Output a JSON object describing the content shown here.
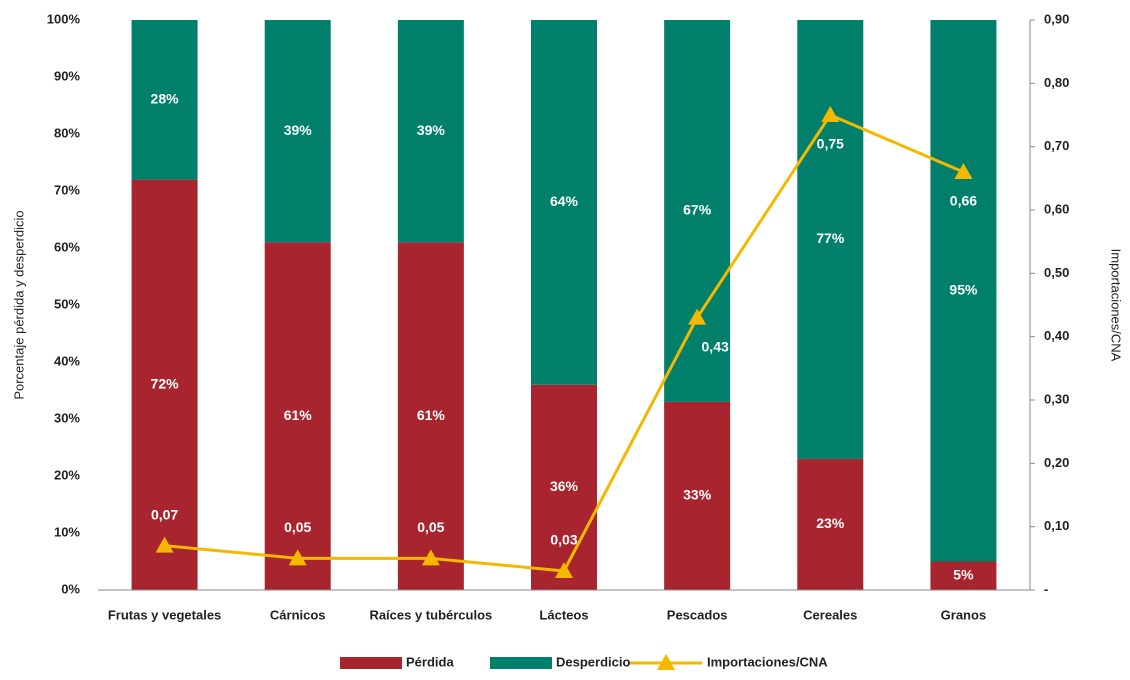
{
  "chart_data": {
    "type": "stacked-bar-line",
    "ylabel": "Porcentaje pérdida y desperdicio",
    "y2label": "Importaciones/CNA",
    "categories": [
      "Frutas y vegetales",
      "Cárnicos",
      "Raíces y tubérculos",
      "Lácteos",
      "Pescados",
      "Cereales",
      "Granos"
    ],
    "series": [
      {
        "name": "Pérdida",
        "color": "#a8242f",
        "values": [
          72,
          61,
          61,
          36,
          33,
          23,
          5
        ],
        "value_labels": [
          "72%",
          "61%",
          "61%",
          "36%",
          "33%",
          "23%",
          "5%"
        ]
      },
      {
        "name": "Desperdicio",
        "color": "#00806b",
        "values": [
          28,
          39,
          39,
          64,
          67,
          77,
          95
        ],
        "value_labels": [
          "28%",
          "39%",
          "39%",
          "64%",
          "67%",
          "77%",
          "95%"
        ]
      },
      {
        "name": "Importaciones/CNA",
        "color": "#f5b800",
        "axis": "y2",
        "values": [
          0.07,
          0.05,
          0.05,
          0.03,
          0.43,
          0.75,
          0.66
        ],
        "value_labels": [
          "0,07",
          "0,05",
          "0,05",
          "0,03",
          "0,43",
          "0,75",
          "0,66"
        ]
      }
    ],
    "ylim": [
      0,
      100
    ],
    "yticks": [
      {
        "value": 0,
        "label": "0%"
      },
      {
        "value": 10,
        "label": "10%"
      },
      {
        "value": 20,
        "label": "20%"
      },
      {
        "value": 30,
        "label": "30%"
      },
      {
        "value": 40,
        "label": "40%"
      },
      {
        "value": 50,
        "label": "50%"
      },
      {
        "value": 60,
        "label": "60%"
      },
      {
        "value": 70,
        "label": "70%"
      },
      {
        "value": 80,
        "label": "80%"
      },
      {
        "value": 90,
        "label": "90%"
      },
      {
        "value": 100,
        "label": "100%"
      }
    ],
    "y2lim": [
      0,
      0.9
    ],
    "y2ticks": [
      {
        "value": 0,
        "label": "-"
      },
      {
        "value": 0.1,
        "label": "0,10"
      },
      {
        "value": 0.2,
        "label": "0,20"
      },
      {
        "value": 0.3,
        "label": "0,30"
      },
      {
        "value": 0.4,
        "label": "0,40"
      },
      {
        "value": 0.5,
        "label": "0,50"
      },
      {
        "value": 0.6,
        "label": "0,60"
      },
      {
        "value": 0.7,
        "label": "0,70"
      },
      {
        "value": 0.8,
        "label": "0,80"
      },
      {
        "value": 0.9,
        "label": "0,90"
      }
    ],
    "legend": "bottom"
  }
}
